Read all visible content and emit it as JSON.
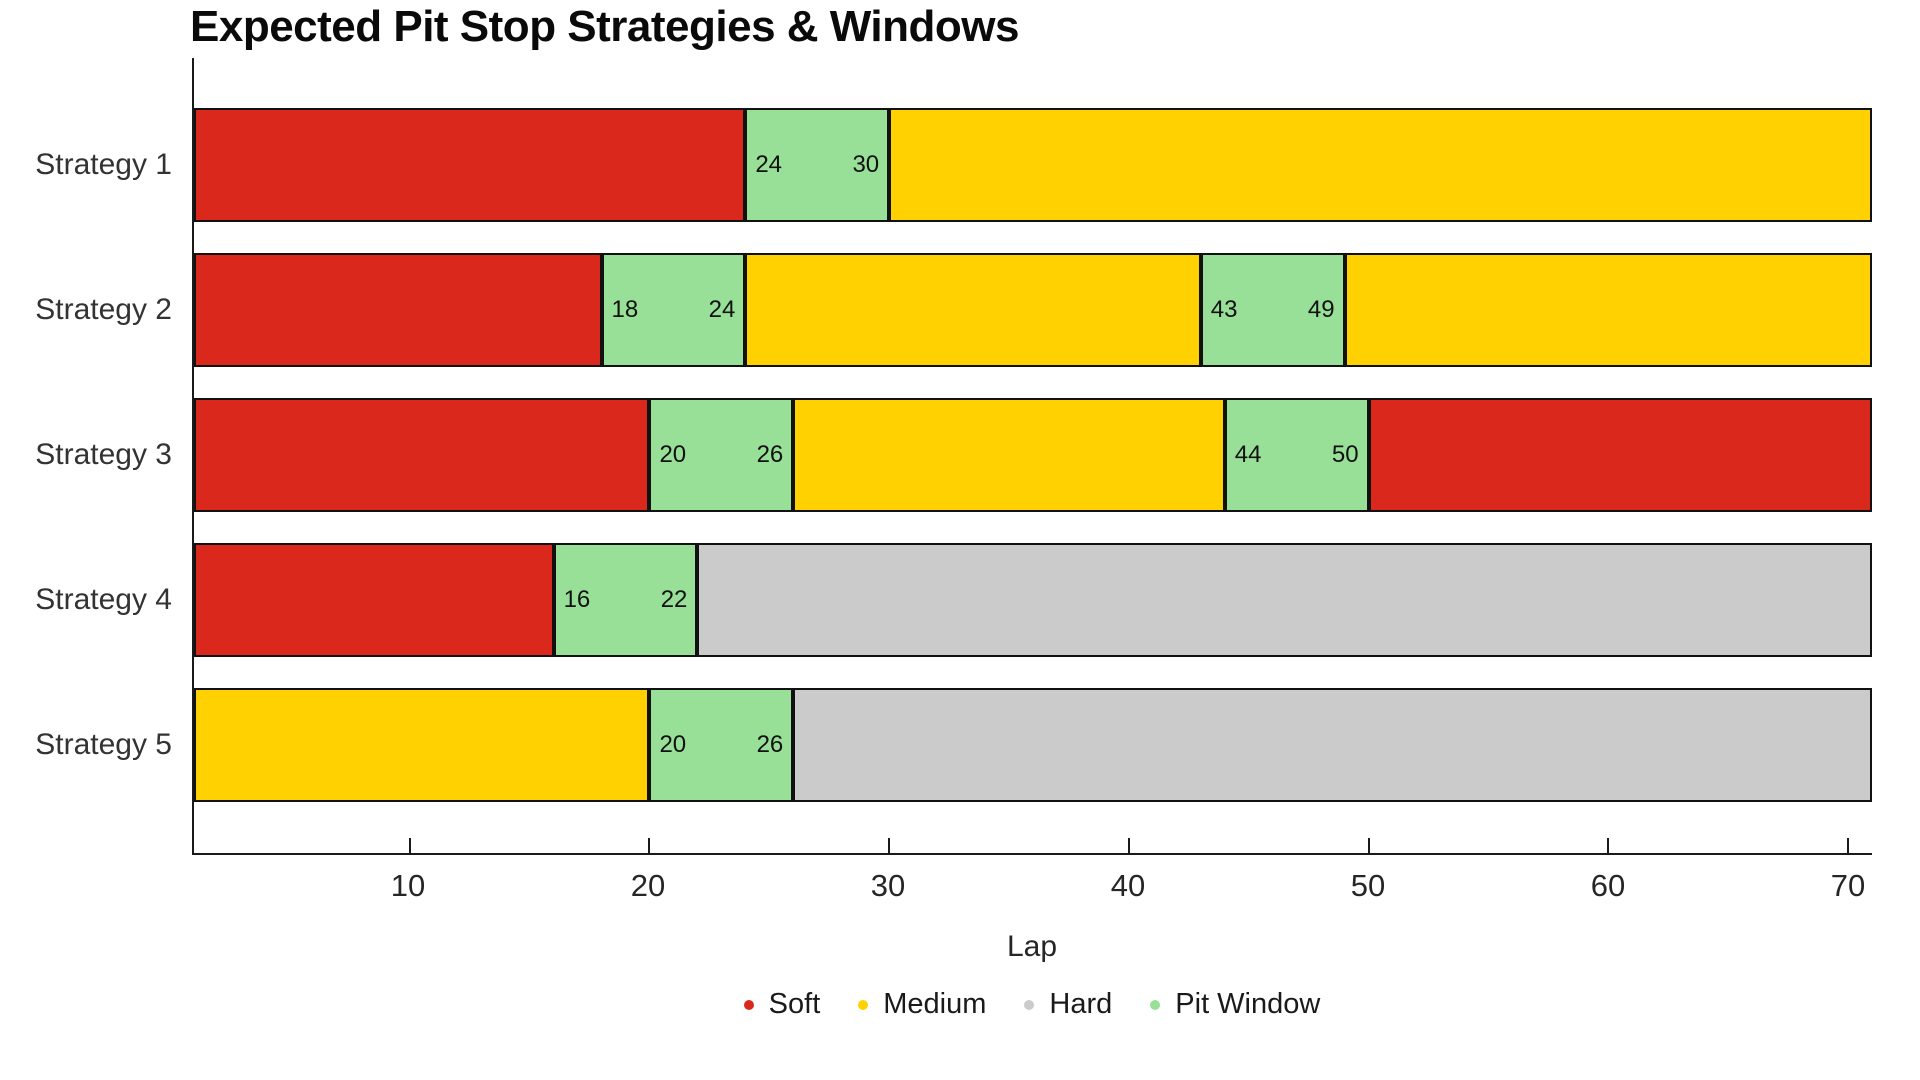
{
  "title": "Expected Pit Stop Strategies & Windows",
  "chart_data": {
    "type": "bar",
    "subtype": "horizontal-stacked-timeline",
    "title": "Expected Pit Stop Strategies & Windows",
    "xlabel": "Lap",
    "xlim": [
      1,
      71
    ],
    "x_ticks": [
      10,
      20,
      30,
      40,
      50,
      60,
      70
    ],
    "grid": false,
    "legend_position": "bottom-center",
    "categories": [
      "Strategy 1",
      "Strategy 2",
      "Strategy 3",
      "Strategy 4",
      "Strategy 5"
    ],
    "colors": {
      "Soft": "#DA291C",
      "Medium": "#FFD100",
      "Hard": "#CBCBCB",
      "Pit Window": "#98E098"
    },
    "legend": [
      "Soft",
      "Medium",
      "Hard",
      "Pit Window"
    ],
    "strategies": [
      {
        "name": "Strategy 1",
        "segments": [
          {
            "type": "Soft",
            "start": 1,
            "end": 24
          },
          {
            "type": "Pit Window",
            "start": 24,
            "end": 30
          },
          {
            "type": "Medium",
            "start": 30,
            "end": 71
          }
        ]
      },
      {
        "name": "Strategy 2",
        "segments": [
          {
            "type": "Soft",
            "start": 1,
            "end": 18
          },
          {
            "type": "Pit Window",
            "start": 18,
            "end": 24
          },
          {
            "type": "Medium",
            "start": 24,
            "end": 43
          },
          {
            "type": "Pit Window",
            "start": 43,
            "end": 49
          },
          {
            "type": "Medium",
            "start": 49,
            "end": 71
          }
        ]
      },
      {
        "name": "Strategy 3",
        "segments": [
          {
            "type": "Soft",
            "start": 1,
            "end": 20
          },
          {
            "type": "Pit Window",
            "start": 20,
            "end": 26
          },
          {
            "type": "Medium",
            "start": 26,
            "end": 44
          },
          {
            "type": "Pit Window",
            "start": 44,
            "end": 50
          },
          {
            "type": "Soft",
            "start": 50,
            "end": 71
          }
        ]
      },
      {
        "name": "Strategy 4",
        "segments": [
          {
            "type": "Soft",
            "start": 1,
            "end": 16
          },
          {
            "type": "Pit Window",
            "start": 16,
            "end": 22
          },
          {
            "type": "Hard",
            "start": 22,
            "end": 71
          }
        ]
      },
      {
        "name": "Strategy 5",
        "segments": [
          {
            "type": "Medium",
            "start": 1,
            "end": 20
          },
          {
            "type": "Pit Window",
            "start": 20,
            "end": 26
          },
          {
            "type": "Hard",
            "start": 26,
            "end": 71
          }
        ]
      }
    ]
  }
}
